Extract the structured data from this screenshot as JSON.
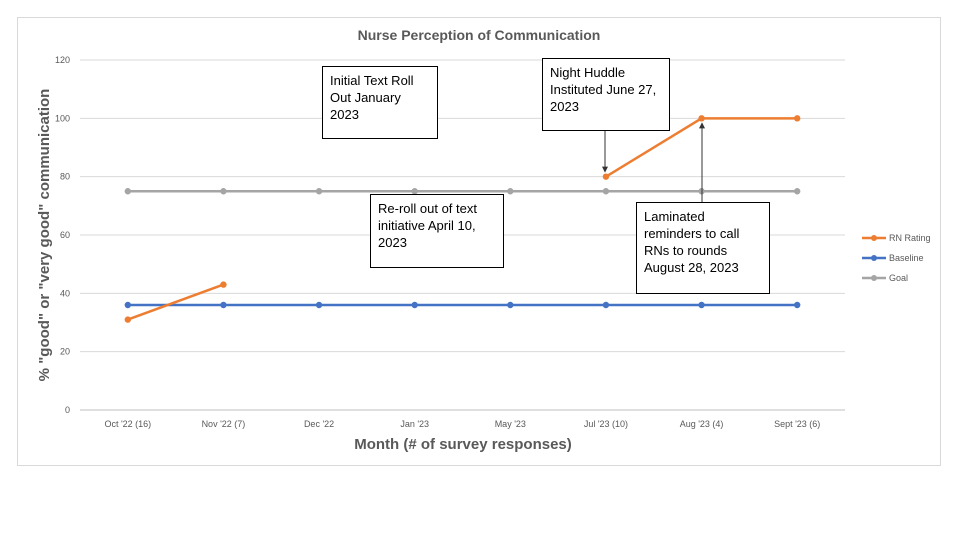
{
  "chart_data": {
    "type": "line",
    "title": "Nurse Perception of Communication",
    "xlabel": "Month (# of survey responses)",
    "ylabel": "% \"good\" or \"very good\" communication",
    "categories": [
      "Oct '22 (16)",
      "Nov '22 (7)",
      "Dec '22",
      "Jan '23",
      "May '23",
      "Jul '23 (10)",
      "Aug '23 (4)",
      "Sept '23 (6)"
    ],
    "ylim": [
      0,
      120
    ],
    "yticks": [
      0,
      20,
      40,
      60,
      80,
      100,
      120
    ],
    "grid": true,
    "legend_position": "right",
    "series": [
      {
        "name": "RN Rating",
        "color": "#ed7d31",
        "values": [
          31,
          43,
          null,
          null,
          null,
          80,
          100,
          100
        ]
      },
      {
        "name": "Baseline",
        "color": "#4472c4",
        "values": [
          36,
          36,
          36,
          36,
          36,
          36,
          36,
          36
        ]
      },
      {
        "name": "Goal",
        "color": "#a5a5a5",
        "values": [
          75,
          75,
          75,
          75,
          75,
          75,
          75,
          75
        ]
      }
    ],
    "annotations": [
      {
        "text": "Initial Text Roll Out January 2023"
      },
      {
        "text": "Re-roll out of text initiative April 10, 2023"
      },
      {
        "text": "Night Huddle Instituted June 27, 2023"
      },
      {
        "text": "Laminated reminders to call RNs to rounds August 28, 2023"
      }
    ]
  }
}
